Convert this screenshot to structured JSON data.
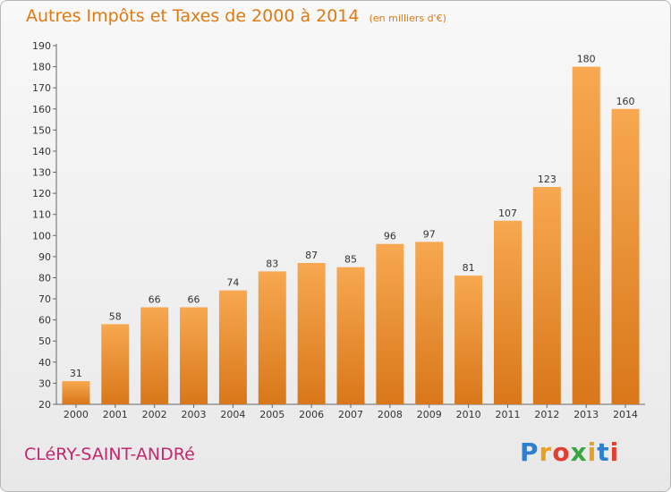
{
  "header": {
    "title": "Autres Impôts et Taxes de 2000 à 2014",
    "subtitle": "(en milliers d'€)"
  },
  "footer": {
    "commune": "CLéRY-SAINT-ANDRé",
    "logo_letters": [
      "P",
      "r",
      "o",
      "x",
      "i",
      "t",
      "i"
    ],
    "logo_colors": [
      "#2f7fd0",
      "#e8a020",
      "#e04030",
      "#3aa640",
      "#e8a020",
      "#2f7fd0",
      "#e04030"
    ]
  },
  "chart_data": {
    "type": "bar",
    "title": "Autres Impôts et Taxes de 2000 à 2014",
    "categories": [
      "2000",
      "2001",
      "2002",
      "2003",
      "2004",
      "2005",
      "2006",
      "2007",
      "2008",
      "2009",
      "2010",
      "2011",
      "2012",
      "2013",
      "2014"
    ],
    "values": [
      31,
      58,
      66,
      66,
      74,
      83,
      87,
      85,
      96,
      97,
      81,
      107,
      123,
      180,
      160
    ],
    "ylim": [
      20,
      190
    ],
    "yticks": [
      20,
      30,
      40,
      50,
      60,
      70,
      80,
      90,
      100,
      110,
      120,
      130,
      140,
      150,
      160,
      170,
      180,
      190
    ],
    "grid": false,
    "bar_color_top": "#f7a850",
    "bar_color_bottom": "#d9771a"
  }
}
